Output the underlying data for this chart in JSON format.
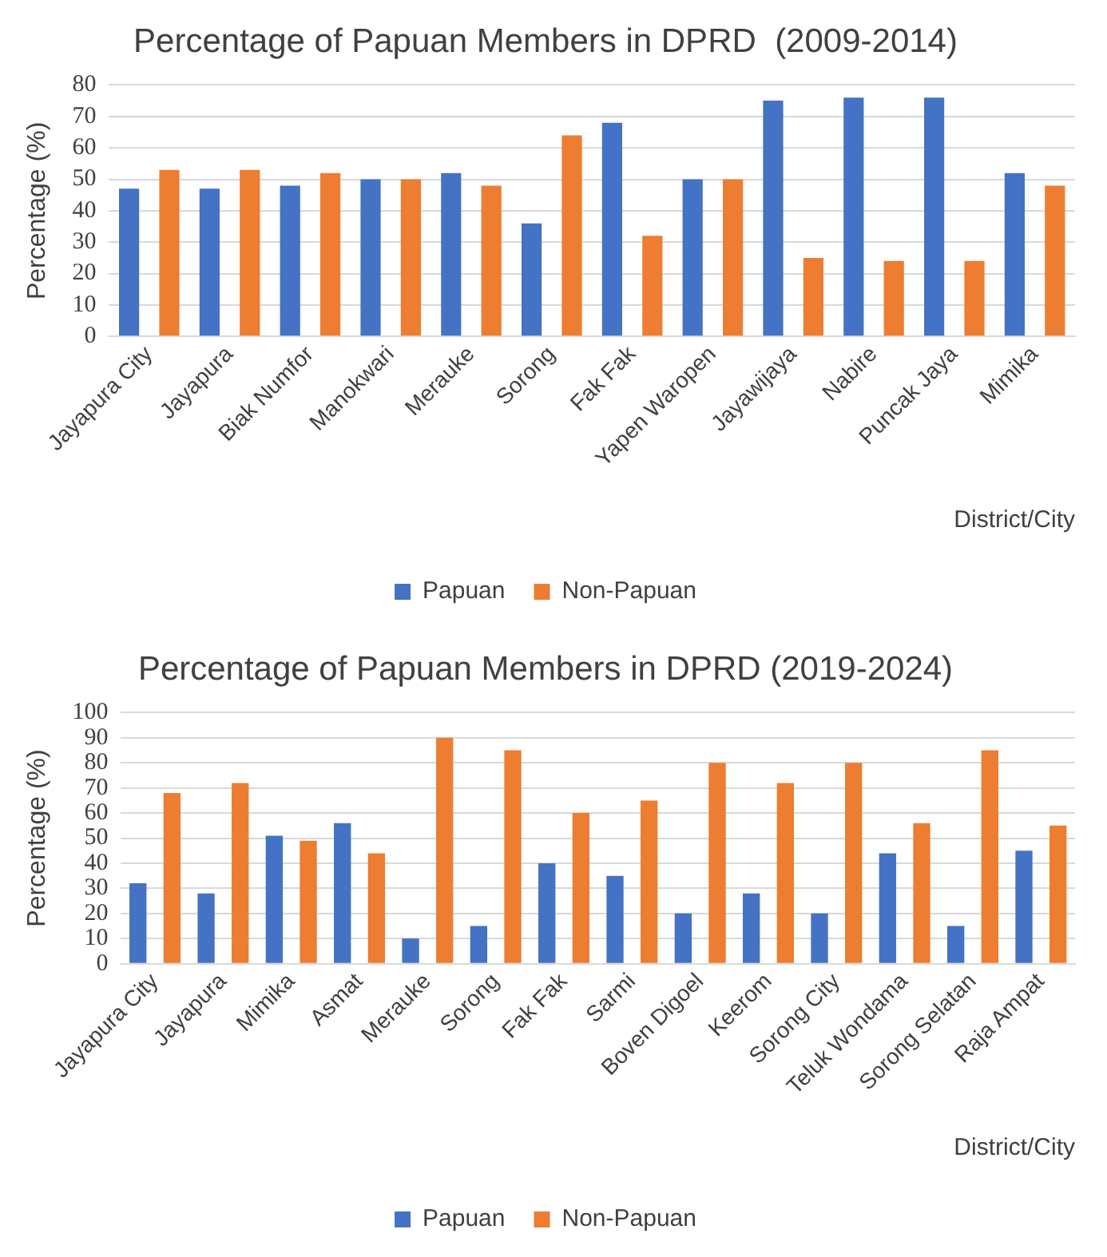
{
  "chart_data": [
    {
      "type": "bar",
      "title": "Percentage of Papuan Members in DPRD  (2009-2014)",
      "xlabel": "District/City",
      "ylabel": "Percentage (%)",
      "categories": [
        "Jayapura City",
        "Jayapura",
        "Biak Numfor",
        "Manokwari",
        "Merauke",
        "Sorong",
        "Fak Fak",
        "Yapen Waropen",
        "Jayawijaya",
        "Nabire",
        "Puncak Jaya",
        "Mimika"
      ],
      "series": [
        {
          "name": "Papuan",
          "color": "#4472c4",
          "values": [
            47,
            47,
            48,
            50,
            52,
            36,
            68,
            50,
            75,
            76,
            76,
            52
          ]
        },
        {
          "name": "Non-Papuan",
          "color": "#ed7d31",
          "values": [
            53,
            53,
            52,
            50,
            48,
            64,
            32,
            50,
            25,
            24,
            24,
            48
          ]
        }
      ],
      "ylim": [
        0,
        80
      ],
      "yticks": [
        0,
        10,
        20,
        30,
        40,
        50,
        60,
        70,
        80
      ],
      "grid": "y",
      "legend": "bottom"
    },
    {
      "type": "bar",
      "title": "Percentage of Papuan Members in DPRD (2019-2024)",
      "xlabel": "District/City",
      "ylabel": "Percentage (%)",
      "categories": [
        "Jayapura City",
        "Jayapura",
        "Mimika",
        "Asmat",
        "Merauke",
        "Sorong",
        "Fak Fak",
        "Sarmi",
        "Boven Digoel",
        "Keerom",
        "Sorong City",
        "Teluk Wondama",
        "Sorong Selatan",
        "Raja Ampat"
      ],
      "series": [
        {
          "name": "Papuan",
          "color": "#4472c4",
          "values": [
            32,
            28,
            51,
            56,
            10,
            15,
            40,
            35,
            20,
            28,
            20,
            44,
            15,
            45
          ]
        },
        {
          "name": "Non-Papuan",
          "color": "#ed7d31",
          "values": [
            68,
            72,
            49,
            44,
            90,
            85,
            60,
            65,
            80,
            72,
            80,
            56,
            85,
            55
          ]
        }
      ],
      "ylim": [
        0,
        100
      ],
      "yticks": [
        0,
        10,
        20,
        30,
        40,
        50,
        60,
        70,
        80,
        90,
        100
      ],
      "grid": "y",
      "legend": "bottom"
    }
  ]
}
